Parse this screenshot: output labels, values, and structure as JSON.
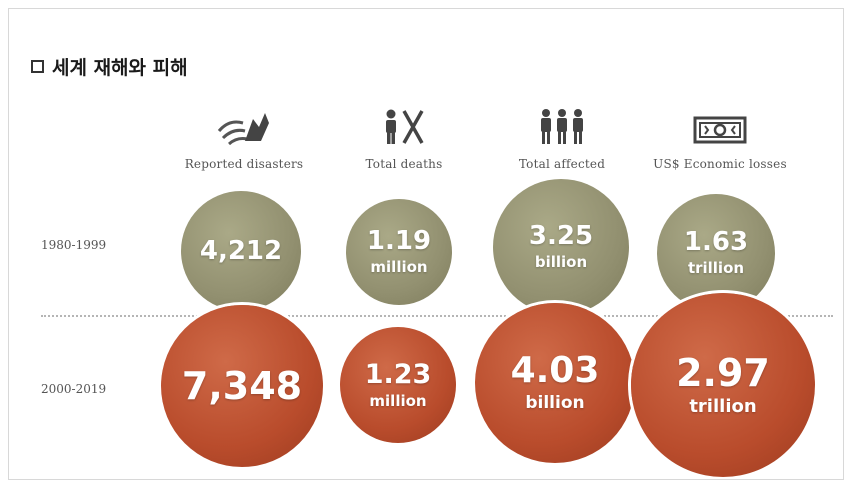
{
  "title": "세계 재해와 피해",
  "columns": [
    {
      "label": "Reported disasters",
      "icon": "wind-storm-icon"
    },
    {
      "label": "Total deaths",
      "icon": "person-cross-icon"
    },
    {
      "label": "Total affected",
      "icon": "people-group-icon"
    },
    {
      "label": "US$ Economic losses",
      "icon": "banknote-icon"
    }
  ],
  "rows": [
    {
      "period": "1980-1999",
      "color": "#929070",
      "values": [
        {
          "num": "4,212",
          "unit": ""
        },
        {
          "num": "1.19",
          "unit": "million"
        },
        {
          "num": "3.25",
          "unit": "billion"
        },
        {
          "num": "1.63",
          "unit": "trillion"
        }
      ]
    },
    {
      "period": "2000-2019",
      "color": "#b94c2c",
      "values": [
        {
          "num": "7,348",
          "unit": ""
        },
        {
          "num": "1.23",
          "unit": "million"
        },
        {
          "num": "4.03",
          "unit": "billion"
        },
        {
          "num": "2.97",
          "unit": "trillion"
        }
      ]
    }
  ]
}
